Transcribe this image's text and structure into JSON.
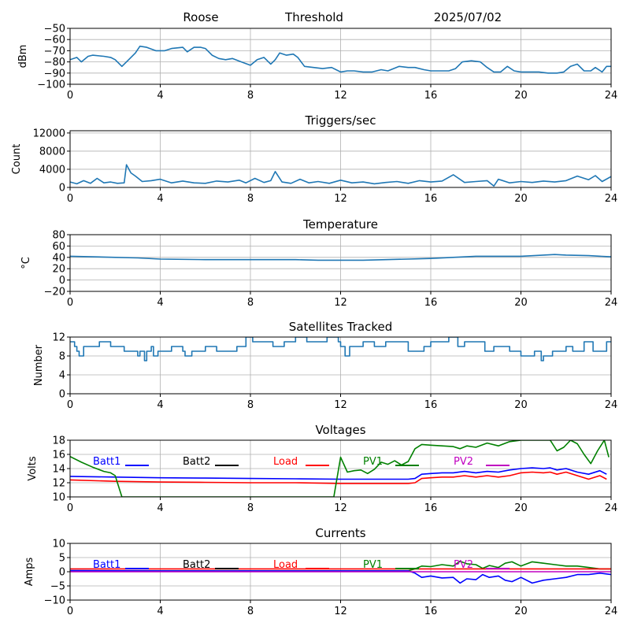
{
  "header": {
    "station": "Roose",
    "label": "Threshold",
    "date": "2025/07/02"
  },
  "colors": {
    "series": "#1f77b4",
    "batt1": "#0000ff",
    "batt2": "#000000",
    "load": "#ff0000",
    "pv1": "#008000",
    "pv2": "#c000c0",
    "grid": "#b0b0b0"
  },
  "chart_data": [
    {
      "type": "line",
      "title": "",
      "ylabel": "dBm",
      "xlim": [
        0,
        24
      ],
      "xticks": [
        0,
        4,
        8,
        12,
        16,
        20,
        24
      ],
      "ylim": [
        -100,
        -50
      ],
      "yticks": [
        -100,
        -90,
        -80,
        -70,
        -60,
        -50
      ],
      "grid": true,
      "series": [
        {
          "color": "#1f77b4",
          "x": [
            0,
            0.3,
            0.5,
            0.8,
            1.0,
            1.5,
            1.8,
            2.0,
            2.3,
            2.6,
            2.9,
            3.1,
            3.4,
            3.8,
            4.2,
            4.5,
            5.0,
            5.2,
            5.5,
            5.8,
            6.0,
            6.3,
            6.6,
            6.9,
            7.2,
            7.6,
            8.0,
            8.3,
            8.6,
            8.9,
            9.1,
            9.3,
            9.6,
            9.9,
            10.1,
            10.4,
            10.8,
            11.2,
            11.6,
            12.0,
            12.3,
            12.6,
            13.0,
            13.4,
            13.8,
            14.1,
            14.6,
            15.0,
            15.3,
            15.7,
            16.0,
            16.4,
            16.8,
            17.1,
            17.4,
            17.8,
            18.2,
            18.5,
            18.8,
            19.1,
            19.4,
            19.7,
            20.0,
            20.4,
            20.8,
            21.2,
            21.6,
            21.9,
            22.2,
            22.5,
            22.8,
            23.1,
            23.3,
            23.6,
            23.8,
            24.0
          ],
          "y": [
            -78,
            -76,
            -80,
            -75,
            -74,
            -75,
            -76,
            -78,
            -84,
            -78,
            -72,
            -66,
            -67,
            -70,
            -70,
            -68,
            -67,
            -71,
            -67,
            -67,
            -68,
            -74,
            -77,
            -78,
            -77,
            -80,
            -83,
            -78,
            -76,
            -82,
            -78,
            -72,
            -74,
            -73,
            -76,
            -84,
            -85,
            -86,
            -85,
            -89,
            -88,
            -88,
            -89,
            -89,
            -87,
            -88,
            -84,
            -85,
            -85,
            -87,
            -88,
            -88,
            -88,
            -86,
            -80,
            -79,
            -80,
            -85,
            -89,
            -89,
            -84,
            -88,
            -89,
            -89,
            -89,
            -90,
            -90,
            -89,
            -84,
            -82,
            -88,
            -88,
            -85,
            -89,
            -84,
            -84
          ]
        }
      ]
    },
    {
      "type": "line",
      "title": "Triggers/sec",
      "ylabel": "Count",
      "xlim": [
        0,
        24
      ],
      "xticks": [
        0,
        4,
        8,
        12,
        16,
        20,
        24
      ],
      "ylim": [
        0,
        12500
      ],
      "yticks": [
        0,
        4000,
        8000,
        12000
      ],
      "grid": true,
      "series": [
        {
          "color": "#1f77b4",
          "x": [
            0,
            0.3,
            0.6,
            0.9,
            1.2,
            1.5,
            1.8,
            2.1,
            2.4,
            2.5,
            2.7,
            2.9,
            3.2,
            3.6,
            4.0,
            4.5,
            5.0,
            5.5,
            6.0,
            6.5,
            7.0,
            7.5,
            7.8,
            8.2,
            8.6,
            8.9,
            9.1,
            9.4,
            9.8,
            10.2,
            10.6,
            11.0,
            11.5,
            12.0,
            12.5,
            13.0,
            13.5,
            14.0,
            14.5,
            15.0,
            15.5,
            16.0,
            16.5,
            17.0,
            17.5,
            18.0,
            18.5,
            18.8,
            19.0,
            19.5,
            20.0,
            20.5,
            21.0,
            21.5,
            22.0,
            22.5,
            23.0,
            23.3,
            23.6,
            24.0
          ],
          "y": [
            1200,
            800,
            1500,
            900,
            2000,
            1000,
            1200,
            900,
            1000,
            5000,
            3200,
            2500,
            1300,
            1500,
            1800,
            1000,
            1400,
            1000,
            900,
            1400,
            1200,
            1600,
            1000,
            2000,
            1100,
            1500,
            3500,
            1200,
            900,
            1800,
            1000,
            1300,
            900,
            1600,
            1000,
            1200,
            800,
            1100,
            1300,
            900,
            1500,
            1200,
            1400,
            2800,
            1100,
            1300,
            1500,
            300,
            1800,
            1000,
            1300,
            1100,
            1400,
            1200,
            1500,
            2500,
            1700,
            2600,
            1300,
            2400
          ]
        }
      ]
    },
    {
      "type": "line",
      "title": "Temperature",
      "ylabel": "°C",
      "xlim": [
        0,
        24
      ],
      "xticks": [
        0,
        4,
        8,
        12,
        16,
        20,
        24
      ],
      "ylim": [
        -20,
        80
      ],
      "yticks": [
        -20,
        0,
        20,
        40,
        60,
        80
      ],
      "grid": true,
      "series": [
        {
          "color": "#1f77b4",
          "x": [
            0,
            1,
            2,
            3,
            4,
            6,
            8,
            10,
            11,
            12,
            13,
            14,
            15,
            16,
            17,
            18,
            19,
            20,
            21,
            21.5,
            22,
            23,
            24
          ],
          "y": [
            42,
            41,
            40,
            39,
            37,
            36,
            36,
            36,
            35,
            35,
            35,
            36,
            37,
            38,
            40,
            42,
            42,
            42,
            44,
            45,
            44,
            43,
            41
          ]
        }
      ]
    },
    {
      "type": "line",
      "title": "Satellites Tracked",
      "ylabel": "Number",
      "xlim": [
        0,
        24
      ],
      "xticks": [
        0,
        4,
        8,
        12,
        16,
        20,
        24
      ],
      "ylim": [
        0,
        12
      ],
      "yticks": [
        0,
        4,
        8,
        12
      ],
      "grid": true,
      "series": [
        {
          "color": "#1f77b4",
          "step": true,
          "x": [
            0,
            0.2,
            0.3,
            0.4,
            0.6,
            1.0,
            1.3,
            1.8,
            2.4,
            3.0,
            3.1,
            3.3,
            3.4,
            3.6,
            3.7,
            3.9,
            4.1,
            4.5,
            5.0,
            5.1,
            5.4,
            5.6,
            6.0,
            6.5,
            6.9,
            7.4,
            7.8,
            8.1,
            8.5,
            9.0,
            9.5,
            10.0,
            10.5,
            11.0,
            11.4,
            11.9,
            12.0,
            12.2,
            12.4,
            13.0,
            13.5,
            14.0,
            14.5,
            15.0,
            15.5,
            15.7,
            16.0,
            16.5,
            16.8,
            17.2,
            17.5,
            18.0,
            18.4,
            18.8,
            19.2,
            19.5,
            20.0,
            20.4,
            20.6,
            20.9,
            21.0,
            21.4,
            21.7,
            22.0,
            22.3,
            22.8,
            23.2,
            23.8
          ],
          "y": [
            11,
            10,
            9,
            8,
            10,
            10,
            11,
            10,
            9,
            8,
            9,
            7,
            9,
            10,
            8,
            9,
            9,
            10,
            9,
            8,
            9,
            9,
            10,
            9,
            9,
            10,
            12,
            11,
            11,
            10,
            11,
            12,
            11,
            11,
            12,
            11,
            10,
            8,
            10,
            11,
            10,
            11,
            11,
            9,
            9,
            10,
            11,
            11,
            12,
            10,
            11,
            11,
            9,
            10,
            10,
            9,
            8,
            8,
            9,
            7,
            8,
            9,
            9,
            10,
            9,
            11,
            9,
            11
          ]
        }
      ]
    },
    {
      "type": "line",
      "title": "Voltages",
      "ylabel": "Volts",
      "xlim": [
        0,
        24
      ],
      "xticks": [
        0,
        4,
        8,
        12,
        16,
        20,
        24
      ],
      "ylim": [
        10,
        18
      ],
      "yticks": [
        10,
        12,
        14,
        16,
        18
      ],
      "grid": true,
      "legend": [
        "Batt1",
        "Batt2",
        "Load",
        "PV1",
        "PV2"
      ],
      "series": [
        {
          "name": "Batt1",
          "color": "#0000ff",
          "x": [
            0,
            2,
            4,
            6,
            8,
            10,
            12,
            14,
            15,
            15.3,
            15.6,
            16,
            16.5,
            17,
            17.5,
            18,
            18.5,
            19,
            19.5,
            20,
            20.5,
            21,
            21.3,
            21.6,
            22,
            22.5,
            23,
            23.5,
            23.8
          ],
          "y": [
            12.9,
            12.8,
            12.7,
            12.65,
            12.6,
            12.55,
            12.5,
            12.5,
            12.5,
            12.6,
            13.2,
            13.3,
            13.4,
            13.4,
            13.6,
            13.4,
            13.6,
            13.5,
            13.8,
            14.0,
            14.1,
            14.0,
            14.1,
            13.8,
            14.0,
            13.5,
            13.2,
            13.7,
            13.2
          ]
        },
        {
          "name": "Load",
          "color": "#ff0000",
          "x": [
            0,
            2,
            4,
            6,
            8,
            10,
            12,
            14,
            15,
            15.3,
            15.6,
            16,
            16.5,
            17,
            17.5,
            18,
            18.5,
            19,
            19.5,
            20,
            20.5,
            21,
            21.3,
            21.6,
            22,
            22.5,
            23,
            23.5,
            23.8
          ],
          "y": [
            12.4,
            12.2,
            12.1,
            12.05,
            12.0,
            12.0,
            11.9,
            11.9,
            11.9,
            12.0,
            12.6,
            12.7,
            12.8,
            12.8,
            13.0,
            12.8,
            13.0,
            12.8,
            13.0,
            13.4,
            13.5,
            13.4,
            13.5,
            13.2,
            13.5,
            13.0,
            12.5,
            13.0,
            12.5
          ]
        },
        {
          "name": "PV1",
          "color": "#008000",
          "x": [
            0,
            0.5,
            1.0,
            1.5,
            1.8,
            2.0,
            2.1,
            2.3,
            11.7,
            12.0,
            12.3,
            12.6,
            12.9,
            13.2,
            13.5,
            13.8,
            14.1,
            14.4,
            14.7,
            15.0,
            15.3,
            15.6,
            16.0,
            16.5,
            17.0,
            17.3,
            17.6,
            18.0,
            18.5,
            19.0,
            19.5,
            20.0,
            20.5,
            21.0,
            21.3,
            21.6,
            21.9,
            22.2,
            22.5,
            22.8,
            23.1,
            23.4,
            23.7,
            23.9
          ],
          "y": [
            15.7,
            14.9,
            14.2,
            13.6,
            13.4,
            13.0,
            12.0,
            10.0,
            10.0,
            15.6,
            13.5,
            13.7,
            13.8,
            13.3,
            13.9,
            14.9,
            14.6,
            15.1,
            14.5,
            15.0,
            16.8,
            17.4,
            17.3,
            17.2,
            17.1,
            16.8,
            17.2,
            17.0,
            17.6,
            17.2,
            17.8,
            18.0,
            18.0,
            18.0,
            18.0,
            16.5,
            17.0,
            18.0,
            17.5,
            16.0,
            14.7,
            16.5,
            18.0,
            15.6
          ]
        }
      ]
    },
    {
      "type": "line",
      "title": "Currents",
      "ylabel": "Amps",
      "xlim": [
        0,
        24
      ],
      "xticks": [
        0,
        4,
        8,
        12,
        16,
        20,
        24
      ],
      "ylim": [
        -10,
        10
      ],
      "yticks": [
        -10,
        -5,
        0,
        5,
        10
      ],
      "grid": true,
      "legend": [
        "Batt1",
        "Batt2",
        "Load",
        "PV1",
        "PV2"
      ],
      "series": [
        {
          "name": "PV1",
          "color": "#008000",
          "x": [
            0,
            4,
            8,
            12,
            15,
            15.3,
            15.6,
            16,
            16.5,
            17,
            17.3,
            17.6,
            18,
            18.3,
            18.6,
            19,
            19.3,
            19.6,
            20,
            20.5,
            21,
            21.5,
            22,
            22.5,
            23,
            23.5,
            24
          ],
          "y": [
            0.3,
            0.3,
            0.3,
            0.3,
            0.3,
            1.0,
            2.0,
            1.8,
            2.5,
            2.0,
            3.7,
            2.8,
            2.5,
            1.2,
            2.2,
            1.5,
            3.0,
            3.5,
            2.0,
            3.5,
            3.0,
            2.5,
            2.0,
            2.0,
            1.5,
            1.0,
            1.0
          ]
        },
        {
          "name": "Batt1",
          "color": "#0000ff",
          "x": [
            0,
            4,
            8,
            12,
            15,
            15.3,
            15.6,
            16,
            16.5,
            17,
            17.3,
            17.6,
            18,
            18.3,
            18.6,
            19,
            19.3,
            19.6,
            20,
            20.5,
            21,
            21.5,
            22,
            22.5,
            23,
            23.5,
            24
          ],
          "y": [
            0.4,
            0.3,
            0.3,
            0.3,
            0.3,
            -0.5,
            -2.0,
            -1.5,
            -2.2,
            -2.0,
            -4.0,
            -2.5,
            -2.8,
            -1.0,
            -2.0,
            -1.5,
            -3.0,
            -3.5,
            -2.0,
            -4.0,
            -3.0,
            -2.5,
            -2.0,
            -1.0,
            -1.0,
            -0.5,
            -1.0
          ]
        },
        {
          "name": "Load",
          "color": "#ff0000",
          "x": [
            0,
            4,
            8,
            12,
            16,
            20,
            24
          ],
          "y": [
            1.0,
            1.0,
            1.0,
            1.0,
            1.0,
            1.0,
            1.0
          ]
        },
        {
          "name": "PV2",
          "color": "#c000c0",
          "x": [
            0,
            4,
            8,
            12,
            16,
            20,
            24
          ],
          "y": [
            0.0,
            0.0,
            0.0,
            0.0,
            0.0,
            0.0,
            0.0
          ]
        }
      ]
    }
  ]
}
